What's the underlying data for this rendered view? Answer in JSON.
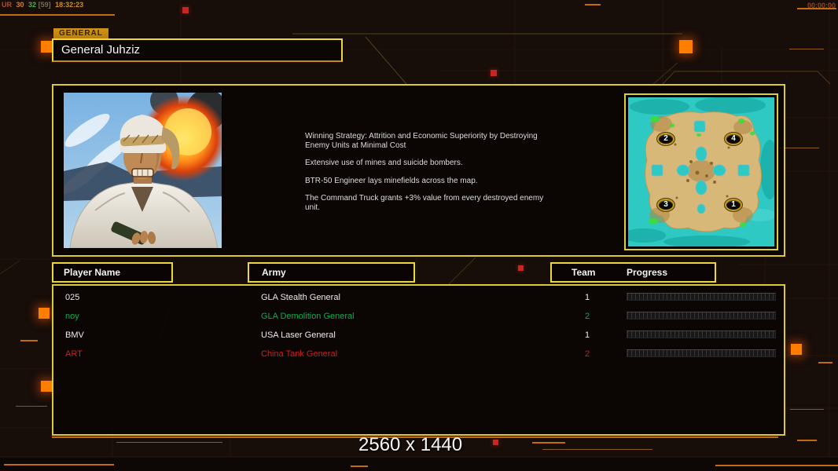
{
  "hud": {
    "stats_parts": [
      {
        "text": "UR",
        "color": "#c8451a"
      },
      {
        "text": "30",
        "color": "#d8821a"
      },
      {
        "text": "32",
        "color": "#46b43c"
      },
      {
        "text": "[59]",
        "color": "#6f6f52"
      },
      {
        "text": "18:32:23",
        "color": "#cf8d1e"
      }
    ],
    "match_timer": "00:00:00"
  },
  "general_panel": {
    "tab_label": "GENERAL",
    "general_name": "General Juhziz"
  },
  "briefing": {
    "paragraphs": [
      "Winning Strategy: Attrition and Economic Superiority by Destroying\n Enemy Units at Minimal Cost",
      "Extensive use of mines and suicide bombers.",
      "BTR-50 Engineer lays minefields across the map.",
      "The Command Truck grants +3% value from every destroyed enemy\n unit."
    ]
  },
  "minimap": {
    "markers": [
      {
        "number": "2",
        "pos": "top-left"
      },
      {
        "number": "4",
        "pos": "top-right"
      },
      {
        "number": "3",
        "pos": "bottom-left"
      },
      {
        "number": "1",
        "pos": "bottom-right"
      }
    ]
  },
  "lobby": {
    "headers": {
      "player": "Player Name",
      "army": "Army",
      "team": "Team",
      "progress": "Progress"
    },
    "rows": [
      {
        "player": "025",
        "army": "GLA Stealth General",
        "team": "1",
        "progress_pct": 0,
        "color": "#ebebeb"
      },
      {
        "player": "noy",
        "army": "GLA Demolition General",
        "team": "2",
        "progress_pct": 0,
        "color": "#00b14f"
      },
      {
        "player": "BMV",
        "army": "USA Laser General",
        "team": "1",
        "progress_pct": 0,
        "color": "#ebebeb"
      },
      {
        "player": "ART",
        "army": "China Tank General",
        "team": "2",
        "progress_pct": 0,
        "color": "#d01f1f"
      }
    ]
  },
  "footer": {
    "resolution_label": "2560 x 1440"
  },
  "colors": {
    "accent_yellow": "#e6d53a",
    "accent_orange": "#ff7d00",
    "line_orange": "#c56a10",
    "water_teal": "#2ec9c3",
    "sand": "#d6b474",
    "team_green": "#00b14f",
    "team_red": "#d01f1f"
  }
}
